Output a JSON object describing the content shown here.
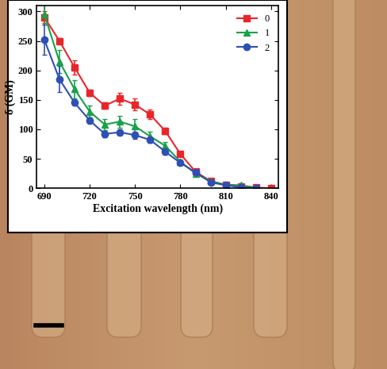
{
  "chart_data": {
    "type": "line",
    "x_label": "Excitation wavelength (nm)",
    "y_label": "δ (GM)",
    "x": [
      690,
      700,
      710,
      720,
      730,
      740,
      750,
      760,
      770,
      780,
      790,
      800,
      810,
      820,
      830,
      840
    ],
    "series": [
      {
        "name": "0",
        "color": "#e8262a",
        "marker": "square",
        "values": [
          290,
          250,
          205,
          162,
          140,
          152,
          142,
          125,
          97,
          58,
          28,
          12,
          5,
          3,
          1,
          0
        ],
        "errors": [
          10,
          5,
          12,
          5,
          5,
          10,
          10,
          8,
          5,
          3,
          3,
          2,
          1,
          1,
          1,
          1
        ]
      },
      {
        "name": "1",
        "color": "#1aa04a",
        "marker": "triangle",
        "values": [
          295,
          215,
          168,
          130,
          108,
          113,
          105,
          88,
          72,
          45,
          25,
          12,
          6,
          5,
          1,
          null
        ],
        "errors": [
          18,
          20,
          15,
          10,
          10,
          10,
          12,
          8,
          6,
          4,
          3,
          2,
          2,
          2,
          1,
          null
        ]
      },
      {
        "name": "2",
        "color": "#2e4fb5",
        "marker": "circle",
        "values": [
          252,
          185,
          145,
          115,
          92,
          95,
          90,
          82,
          62,
          43,
          27,
          10,
          5,
          2,
          0,
          null
        ],
        "errors": [
          25,
          22,
          5,
          5,
          5,
          5,
          6,
          5,
          5,
          4,
          3,
          2,
          1,
          1,
          1,
          null
        ]
      }
    ],
    "xlim": [
      685,
      845
    ],
    "xticks": [
      690,
      720,
      750,
      780,
      810,
      840
    ],
    "ylim": [
      0,
      310
    ],
    "yticks": [
      0,
      50,
      100,
      150,
      200,
      250,
      300
    ],
    "legend": "upper right",
    "grid": false
  }
}
